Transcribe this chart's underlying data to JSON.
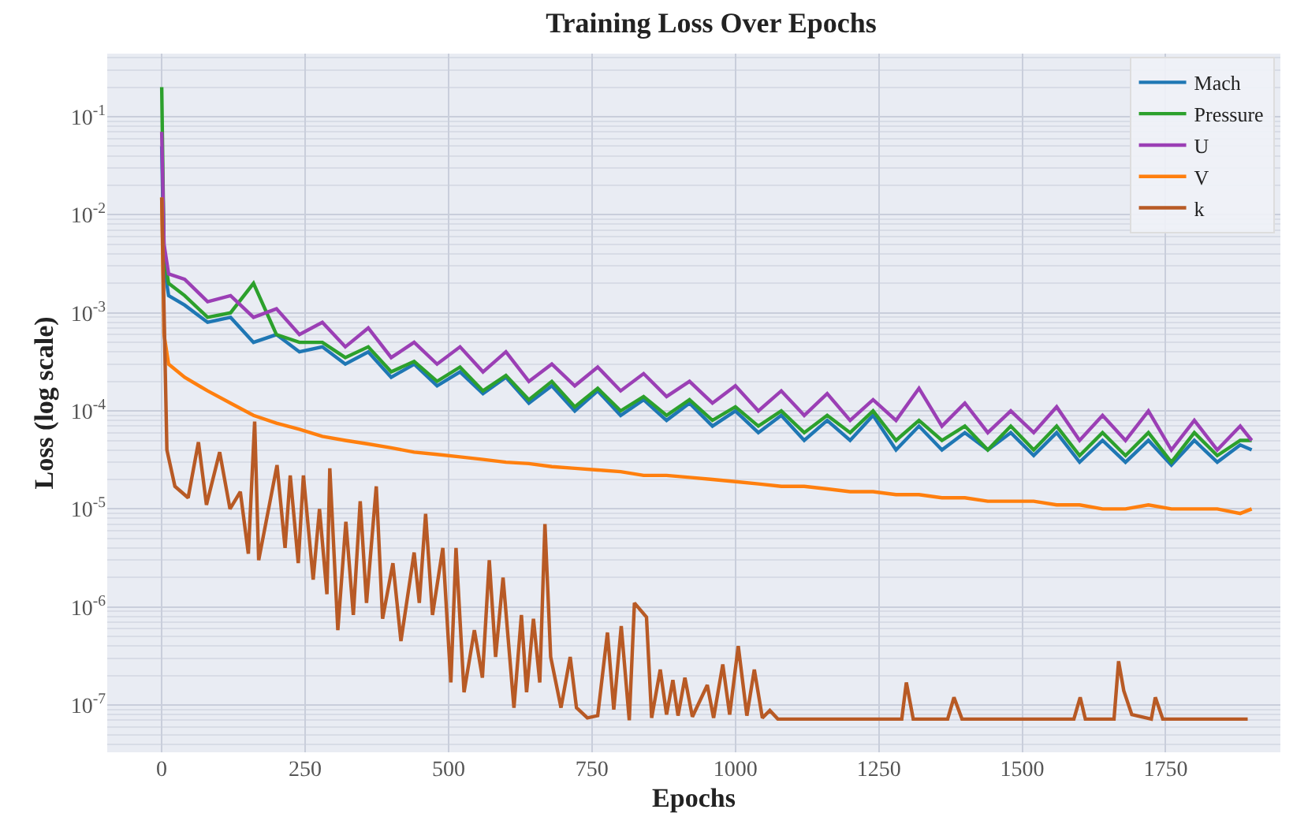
{
  "chart_data": {
    "type": "line",
    "title": "Training Loss Over Epochs",
    "xlabel": "Epochs",
    "ylabel": "Loss (log scale)",
    "log": "y",
    "grid": true,
    "legend": "top right",
    "marker": "none",
    "line_style": "solid",
    "xlim": [
      -95,
      1950
    ],
    "xticks": [
      0,
      250,
      500,
      750,
      1000,
      1250,
      1500,
      1750
    ],
    "ylim": [
      3.3e-08,
      0.44
    ],
    "yticks": [
      {
        "value": 0.1,
        "label": "10$^{-1}$"
      },
      {
        "value": 0.01,
        "label": "10$^{-2}$"
      },
      {
        "value": 0.001,
        "label": "10$^{-3}$"
      },
      {
        "value": 0.0001,
        "label": "10$^{-4}$"
      },
      {
        "value": 1e-05,
        "label": "10$^{-5}$"
      },
      {
        "value": 1e-06,
        "label": "10$^{-6}$"
      },
      {
        "value": 1e-07,
        "label": "10$^{-7}$"
      }
    ],
    "x": [
      0,
      4,
      12,
      40,
      80,
      120,
      160,
      200,
      240,
      280,
      320,
      360,
      400,
      440,
      480,
      520,
      560,
      600,
      640,
      680,
      720,
      760,
      800,
      840,
      880,
      920,
      960,
      1000,
      1040,
      1080,
      1120,
      1160,
      1200,
      1240,
      1280,
      1320,
      1360,
      1400,
      1440,
      1480,
      1520,
      1560,
      1600,
      1640,
      1680,
      1720,
      1760,
      1800,
      1840,
      1880,
      1900
    ],
    "series": [
      {
        "name": "Mach",
        "color": "#1f77b4",
        "values": [
          0.05,
          0.003,
          0.0015,
          0.0012,
          0.0008,
          0.0009,
          0.0005,
          0.0006,
          0.0004,
          0.00045,
          0.0003,
          0.0004,
          0.00022,
          0.0003,
          0.00018,
          0.00025,
          0.00015,
          0.00022,
          0.00012,
          0.00018,
          0.0001,
          0.00016,
          9e-05,
          0.00013,
          8e-05,
          0.00012,
          7e-05,
          0.0001,
          6e-05,
          9e-05,
          5e-05,
          8e-05,
          5e-05,
          9e-05,
          4e-05,
          7e-05,
          4e-05,
          6e-05,
          4e-05,
          6e-05,
          3.5e-05,
          6e-05,
          3e-05,
          5e-05,
          3e-05,
          5e-05,
          2.8e-05,
          5e-05,
          3e-05,
          4.5e-05,
          4e-05
        ]
      },
      {
        "name": "Pressure",
        "color": "#2ca02c",
        "values": [
          0.2,
          0.004,
          0.002,
          0.0015,
          0.0009,
          0.001,
          0.002,
          0.0006,
          0.0005,
          0.0005,
          0.00035,
          0.00045,
          0.00025,
          0.00032,
          0.0002,
          0.00028,
          0.00016,
          0.00023,
          0.00013,
          0.0002,
          0.00011,
          0.00017,
          0.0001,
          0.00014,
          9e-05,
          0.00013,
          8e-05,
          0.00011,
          7e-05,
          0.0001,
          6e-05,
          9e-05,
          6e-05,
          0.0001,
          5e-05,
          8e-05,
          5e-05,
          7e-05,
          4e-05,
          7e-05,
          4e-05,
          7e-05,
          3.5e-05,
          6e-05,
          3.5e-05,
          6e-05,
          3e-05,
          6e-05,
          3.5e-05,
          5e-05,
          5e-05
        ]
      },
      {
        "name": "U",
        "color": "#9b3fb5",
        "values": [
          0.07,
          0.005,
          0.0025,
          0.0022,
          0.0013,
          0.0015,
          0.0009,
          0.0011,
          0.0006,
          0.0008,
          0.00045,
          0.0007,
          0.00035,
          0.0005,
          0.0003,
          0.00045,
          0.00025,
          0.0004,
          0.0002,
          0.0003,
          0.00018,
          0.00028,
          0.00016,
          0.00024,
          0.00014,
          0.0002,
          0.00012,
          0.00018,
          0.0001,
          0.00016,
          9e-05,
          0.00015,
          8e-05,
          0.00013,
          8e-05,
          0.00017,
          7e-05,
          0.00012,
          6e-05,
          0.0001,
          6e-05,
          0.00011,
          5e-05,
          9e-05,
          5e-05,
          0.0001,
          4e-05,
          8e-05,
          4e-05,
          7e-05,
          5e-05
        ]
      },
      {
        "name": "V",
        "color": "#ff7f0e",
        "values": [
          0.015,
          0.0006,
          0.0003,
          0.00022,
          0.00016,
          0.00012,
          9e-05,
          7.5e-05,
          6.5e-05,
          5.5e-05,
          5e-05,
          4.6e-05,
          4.2e-05,
          3.8e-05,
          3.6e-05,
          3.4e-05,
          3.2e-05,
          3e-05,
          2.9e-05,
          2.7e-05,
          2.6e-05,
          2.5e-05,
          2.4e-05,
          2.2e-05,
          2.2e-05,
          2.1e-05,
          2e-05,
          1.9e-05,
          1.8e-05,
          1.7e-05,
          1.7e-05,
          1.6e-05,
          1.5e-05,
          1.5e-05,
          1.4e-05,
          1.4e-05,
          1.3e-05,
          1.3e-05,
          1.2e-05,
          1.2e-05,
          1.2e-05,
          1.1e-05,
          1.1e-05,
          1e-05,
          1e-05,
          1.1e-05,
          1e-05,
          1e-05,
          1e-05,
          9e-06,
          1e-05
        ]
      },
      {
        "name": "k",
        "color": "#b85a25",
        "x": [
          0,
          9,
          23,
          46,
          64,
          78,
          101,
          119,
          137,
          151,
          162,
          169,
          201,
          215,
          224,
          238,
          247,
          264,
          275,
          288,
          293,
          307,
          321,
          334,
          346,
          357,
          374,
          385,
          403,
          417,
          440,
          449,
          460,
          472,
          490,
          504,
          513,
          527,
          545,
          559,
          571,
          582,
          595,
          614,
          627,
          636,
          648,
          659,
          668,
          678,
          696,
          712,
          723,
          742,
          760,
          777,
          788,
          801,
          815,
          824,
          845,
          854,
          869,
          880,
          891,
          900,
          912,
          925,
          951,
          962,
          978,
          990,
          1005,
          1020,
          1033,
          1047,
          1060,
          1074,
          1100,
          1200,
          1290,
          1298,
          1310,
          1370,
          1381,
          1395,
          1500,
          1590,
          1601,
          1610,
          1660,
          1668,
          1677,
          1691,
          1725,
          1732,
          1745,
          1800,
          1893
        ],
        "values": [
          0.015,
          4e-05,
          1.7e-05,
          1.3e-05,
          4.8e-05,
          1.1e-05,
          3.8e-05,
          1e-05,
          1.5e-05,
          3.5e-06,
          7.8e-05,
          3e-06,
          2.8e-05,
          4e-06,
          2.2e-05,
          2.8e-06,
          2.2e-05,
          1.9e-06,
          1e-05,
          1.35e-06,
          2.6e-05,
          5.8e-07,
          7.4e-06,
          8.3e-07,
          1.2e-05,
          1.1e-06,
          1.7e-05,
          7.6e-07,
          2.8e-06,
          4.5e-07,
          3.6e-06,
          1.1e-06,
          8.9e-06,
          8.3e-07,
          4e-06,
          1.7e-07,
          4e-06,
          1.35e-07,
          5.8e-07,
          1.9e-07,
          3e-06,
          3.1e-07,
          2e-06,
          9.4e-08,
          8.3e-07,
          1.35e-07,
          7.6e-07,
          1.7e-07,
          7e-06,
          3.1e-07,
          9.4e-08,
          3.1e-07,
          9.4e-08,
          7.4e-08,
          7.8e-08,
          5.5e-07,
          9e-08,
          6.4e-07,
          7e-08,
          1.1e-06,
          7.9e-07,
          7.4e-08,
          2.3e-07,
          8e-08,
          1.8e-07,
          7.8e-08,
          1.9e-07,
          7.6e-08,
          1.6e-07,
          7.4e-08,
          2.6e-07,
          8e-08,
          4e-07,
          7.8e-08,
          2.3e-07,
          7.4e-08,
          8.8e-08,
          7.2e-08,
          7.2e-08,
          7.2e-08,
          7.2e-08,
          1.7e-07,
          7.2e-08,
          7.2e-08,
          1.2e-07,
          7.2e-08,
          7.2e-08,
          7.2e-08,
          1.2e-07,
          7.2e-08,
          7.2e-08,
          2.8e-07,
          1.4e-07,
          8e-08,
          7.2e-08,
          1.2e-07,
          7.2e-08,
          7.2e-08,
          7.2e-08
        ]
      }
    ]
  }
}
